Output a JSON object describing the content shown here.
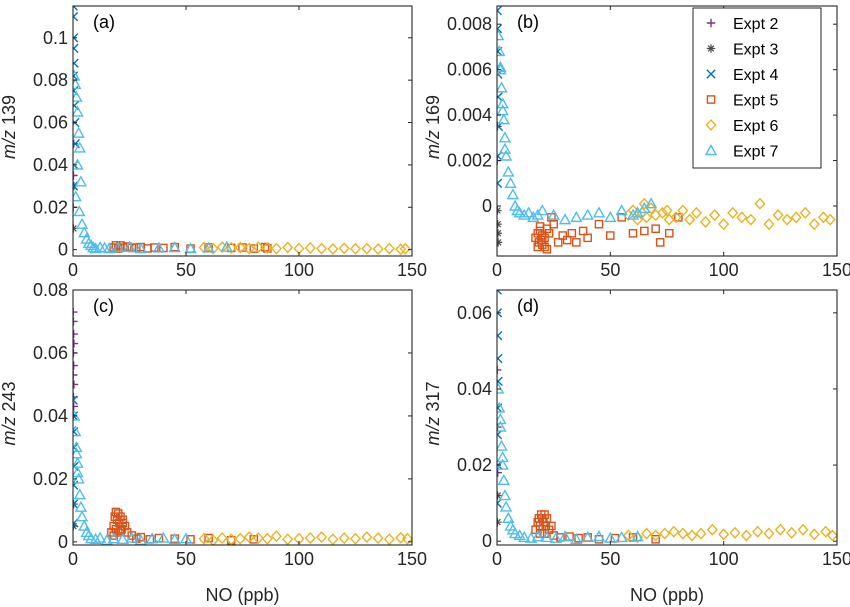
{
  "colors": {
    "expt2": "#7E2F8E",
    "expt3": "#4D4D4D",
    "expt4": "#0072BD",
    "expt5": "#D95319",
    "expt6": "#EDB120",
    "expt7": "#4DBEEE"
  },
  "series_styles": [
    {
      "name": "Expt 2",
      "marker": "plus",
      "color": "#7E2F8E"
    },
    {
      "name": "Expt 3",
      "marker": "asterisk",
      "color": "#4D4D4D"
    },
    {
      "name": "Expt 4",
      "marker": "cross",
      "color": "#0072BD"
    },
    {
      "name": "Expt 5",
      "marker": "square",
      "color": "#D95319"
    },
    {
      "name": "Expt 6",
      "marker": "diamond",
      "color": "#EDB120"
    },
    {
      "name": "Expt 7",
      "marker": "triangle",
      "color": "#4DBEEE"
    }
  ],
  "chart_data": [
    {
      "panel": "(a)",
      "type": "scatter",
      "xlabel": "",
      "ylabel": "m/z 139",
      "xlim": [
        0,
        150
      ],
      "ylim": [
        -0.003,
        0.115
      ],
      "xticks": [
        0,
        50,
        100,
        150
      ],
      "yticks": [
        0,
        0.02,
        0.04,
        0.06,
        0.08,
        0.1
      ],
      "yticklabels": [
        "0",
        "0.02",
        "0.04",
        "0.06",
        "0.08",
        "0.1"
      ],
      "legend": false,
      "series": [
        {
          "name": "Expt 2",
          "x": [
            0.1,
            0.2,
            0.3
          ],
          "y": [
            0.02,
            0.035,
            0.05
          ]
        },
        {
          "name": "Expt 3",
          "x": [
            0.2,
            0.4
          ],
          "y": [
            0.01,
            0.03
          ]
        },
        {
          "name": "Expt 4",
          "x": [
            0.1,
            0.2,
            0.3,
            0.4,
            0.5,
            0.2,
            0.3,
            0.6,
            0.8,
            1.0,
            0.4,
            0.2
          ],
          "y": [
            0.115,
            0.11,
            0.1,
            0.095,
            0.088,
            0.082,
            0.075,
            0.068,
            0.06,
            0.05,
            0.04,
            0.03
          ]
        },
        {
          "name": "Expt 5",
          "x": [
            18,
            19,
            20,
            21,
            22,
            24,
            26,
            28,
            30,
            33,
            36,
            40,
            45,
            52,
            60,
            70,
            75,
            80,
            85,
            86
          ],
          "y": [
            0.001,
            0.002,
            0.0005,
            0.002,
            0.001,
            0.0015,
            0.0008,
            0.001,
            0.0012,
            0.0006,
            0.001,
            0.0008,
            0.0012,
            0.0005,
            0.001,
            0.0008,
            0.001,
            0.0005,
            0.0012,
            0.0006
          ]
        },
        {
          "name": "Expt 6",
          "x": [
            58,
            62,
            66,
            70,
            74,
            78,
            82,
            86,
            90,
            95,
            100,
            105,
            110,
            115,
            120,
            125,
            130,
            135,
            140,
            145,
            147
          ],
          "y": [
            0.001,
            0.0005,
            0.0012,
            0.0008,
            0.001,
            0.0005,
            0.0012,
            0.0008,
            0.0005,
            0.001,
            0.0005,
            0.0008,
            0.0005,
            0.0003,
            0.0006,
            0.0004,
            0.0005,
            0.0003,
            0.0005,
            0.0002,
            0.0004
          ]
        },
        {
          "name": "Expt 7",
          "x": [
            0.5,
            1,
            1.5,
            2,
            2.5,
            3,
            2,
            3.5,
            1.2,
            2.8,
            4,
            5,
            6,
            7,
            8,
            9,
            10,
            12,
            14,
            16,
            20,
            25,
            30,
            38,
            45,
            52,
            60,
            68
          ],
          "y": [
            0.082,
            0.078,
            0.072,
            0.065,
            0.055,
            0.048,
            0.04,
            0.032,
            0.025,
            0.018,
            0.012,
            0.008,
            0.005,
            0.003,
            0.002,
            0.001,
            0.0005,
            0.001,
            0.0008,
            0.0005,
            0.001,
            0.0012,
            0.0005,
            0.0008,
            0.001,
            0.0005,
            0.0008,
            0.0012
          ]
        }
      ]
    },
    {
      "panel": "(b)",
      "type": "scatter",
      "xlabel": "",
      "ylabel": "m/z 169",
      "xlim": [
        0,
        150
      ],
      "ylim": [
        -0.0022,
        0.0088
      ],
      "xticks": [
        0,
        50,
        100,
        150
      ],
      "yticks": [
        0,
        0.002,
        0.004,
        0.006,
        0.008
      ],
      "yticklabels": [
        "0",
        "0.002",
        "0.004",
        "0.006",
        "0.008"
      ],
      "legend": true,
      "legend_position": "top-right",
      "series": [
        {
          "name": "Expt 2",
          "x": [
            0.1,
            0.2
          ],
          "y": [
            0.002,
            0.0035
          ]
        },
        {
          "name": "Expt 3",
          "x": [
            0.2,
            0.3,
            0.4,
            0.5
          ],
          "y": [
            -0.0002,
            -0.0008,
            -0.0012,
            -0.0016
          ]
        },
        {
          "name": "Expt 4",
          "x": [
            0.1,
            0.2,
            0.3,
            0.4,
            0.5,
            0.6,
            0.3,
            0.2
          ],
          "y": [
            0.0086,
            0.0078,
            0.0068,
            0.0058,
            0.0048,
            0.0035,
            0.0022,
            0.001
          ]
        },
        {
          "name": "Expt 5",
          "x": [
            17,
            18,
            18.5,
            19,
            19.5,
            20,
            21,
            22,
            23,
            24,
            25,
            27,
            29,
            31,
            33,
            35,
            38,
            40,
            45,
            50,
            55,
            60,
            65,
            70,
            72,
            76,
            80,
            18,
            20,
            22,
            19,
            21
          ],
          "y": [
            -0.0014,
            -0.0012,
            -0.0016,
            -0.0011,
            -0.0015,
            -0.0013,
            -0.0014,
            -0.001,
            -0.0012,
            -0.0005,
            -0.0008,
            -0.0016,
            -0.0013,
            -0.0015,
            -0.0012,
            -0.0016,
            -0.0011,
            -0.0014,
            -0.0008,
            -0.0013,
            -0.0005,
            -0.0012,
            -0.0011,
            -0.001,
            -0.0016,
            -0.0012,
            -0.0005,
            -0.0018,
            -0.0017,
            -0.0019,
            -0.0009,
            -0.0018
          ]
        },
        {
          "name": "Expt 6",
          "x": [
            58,
            60,
            62,
            64,
            66,
            68,
            70,
            73,
            76,
            79,
            82,
            85,
            88,
            92,
            96,
            100,
            104,
            108,
            112,
            116,
            120,
            124,
            128,
            132,
            136,
            140,
            144,
            147,
            65,
            75
          ],
          "y": [
            -0.0004,
            -0.0002,
            -0.0006,
            -0.0003,
            -0.0005,
            -0.0001,
            -0.0004,
            -0.0003,
            -0.0006,
            -0.0005,
            -0.0002,
            -0.0006,
            -0.0003,
            -0.0007,
            -0.0004,
            -0.0008,
            -0.0003,
            -0.0005,
            -0.0006,
            0.0001,
            -0.0008,
            -0.0004,
            -0.0006,
            -0.0005,
            -0.0003,
            -0.0008,
            -0.0005,
            -0.0006,
            0.0001,
            -0.0002
          ]
        },
        {
          "name": "Expt 7",
          "x": [
            0.5,
            1,
            1.5,
            2,
            2.5,
            3,
            3.5,
            4,
            5,
            6,
            7,
            8,
            9,
            10,
            12,
            14,
            16,
            18,
            20,
            25,
            30,
            35,
            40,
            45,
            50,
            55,
            60,
            65,
            68,
            62,
            1.5,
            2.5,
            3.5
          ],
          "y": [
            0.0075,
            0.0068,
            0.006,
            0.0052,
            0.0045,
            0.0038,
            0.003,
            0.0022,
            0.0015,
            0.001,
            0.0005,
            0.0,
            -0.0002,
            -0.0003,
            -0.0004,
            -0.0003,
            -0.0005,
            -0.0004,
            -0.0002,
            -0.0004,
            -0.0006,
            -0.0005,
            -0.0004,
            -0.0003,
            -0.0005,
            -0.0002,
            -0.0004,
            -0.0001,
            0.0001,
            -0.0003,
            0.0061,
            0.0042,
            0.0025
          ]
        }
      ]
    },
    {
      "panel": "(c)",
      "type": "scatter",
      "xlabel": "NO (ppb)",
      "ylabel": "m/z 243",
      "xlim": [
        0,
        150
      ],
      "ylim": [
        -0.001,
        0.08
      ],
      "xticks": [
        0,
        50,
        100,
        150
      ],
      "yticks": [
        0,
        0.02,
        0.04,
        0.06,
        0.08
      ],
      "yticklabels": [
        "0",
        "0.02",
        "0.04",
        "0.06",
        "0.08"
      ],
      "legend": false,
      "series": [
        {
          "name": "Expt 2",
          "x": [
            0.1,
            0.2,
            0.3,
            0.4,
            0.2,
            0.3,
            0.1,
            0.4,
            0.2,
            0.3,
            0.1
          ],
          "y": [
            0.073,
            0.07,
            0.066,
            0.063,
            0.06,
            0.056,
            0.053,
            0.05,
            0.046,
            0.043,
            0.04
          ]
        },
        {
          "name": "Expt 3",
          "x": [
            0.2,
            0.3
          ],
          "y": [
            0.005,
            0.012
          ]
        },
        {
          "name": "Expt 4",
          "x": [
            0.1,
            0.2,
            0.3,
            0.4,
            0.5,
            0.3,
            0.2,
            0.4
          ],
          "y": [
            0.045,
            0.04,
            0.035,
            0.03,
            0.024,
            0.018,
            0.012,
            0.006
          ]
        },
        {
          "name": "Expt 5",
          "x": [
            17,
            18,
            18.5,
            19,
            19.5,
            20,
            20.5,
            21,
            21.5,
            22,
            23,
            24,
            18,
            20,
            22,
            19,
            21,
            26,
            28,
            30,
            34,
            38,
            45,
            52,
            60,
            70,
            80
          ],
          "y": [
            0.003,
            0.005,
            0.008,
            0.004,
            0.007,
            0.009,
            0.006,
            0.008,
            0.004,
            0.006,
            0.005,
            0.003,
            0.002,
            0.003,
            0.007,
            0.0095,
            0.0035,
            0.002,
            0.001,
            0.0015,
            0.0008,
            0.0012,
            0.001,
            0.0008,
            0.0012,
            0.0005,
            0.0008
          ]
        },
        {
          "name": "Expt 6",
          "x": [
            58,
            62,
            66,
            70,
            74,
            78,
            82,
            86,
            90,
            95,
            100,
            105,
            110,
            115,
            120,
            125,
            130,
            135,
            140,
            145,
            148
          ],
          "y": [
            0.001,
            0.0005,
            0.0012,
            0.0008,
            0.001,
            0.0015,
            0.0012,
            0.001,
            0.0018,
            0.0008,
            0.001,
            0.0012,
            0.0015,
            0.0008,
            0.0012,
            0.001,
            0.0015,
            0.0012,
            0.0008,
            0.0013,
            0.001
          ]
        },
        {
          "name": "Expt 7",
          "x": [
            0.5,
            1,
            1.5,
            2,
            2.5,
            3,
            3.5,
            4,
            5,
            6,
            7,
            8,
            10,
            12,
            15,
            18,
            22,
            26,
            30,
            35,
            40,
            45,
            50,
            2,
            1.5
          ],
          "y": [
            0.04,
            0.035,
            0.03,
            0.025,
            0.02,
            0.015,
            0.011,
            0.008,
            0.005,
            0.003,
            0.002,
            0.001,
            0.0008,
            0.0012,
            0.0005,
            0.001,
            0.0008,
            0.0012,
            0.0005,
            0.001,
            0.0012,
            0.0008,
            0.001,
            0.022,
            0.028
          ]
        }
      ]
    },
    {
      "panel": "(d)",
      "type": "scatter",
      "xlabel": "NO (ppb)",
      "ylabel": "m/z 317",
      "xlim": [
        0,
        150
      ],
      "ylim": [
        -0.001,
        0.066
      ],
      "xticks": [
        0,
        50,
        100,
        150
      ],
      "yticks": [
        0,
        0.02,
        0.04,
        0.06
      ],
      "yticklabels": [
        "0",
        "0.02",
        "0.04",
        "0.06"
      ],
      "legend": false,
      "series": [
        {
          "name": "Expt 2",
          "x": [
            0.1,
            0.2,
            0.3
          ],
          "y": [
            0.045,
            0.03,
            0.018
          ]
        },
        {
          "name": "Expt 3",
          "x": [
            0.2,
            0.3
          ],
          "y": [
            0.005,
            0.012
          ]
        },
        {
          "name": "Expt 4",
          "x": [
            0.1,
            0.2,
            0.3,
            0.4,
            0.5,
            0.3,
            0.2,
            0.4,
            0.1
          ],
          "y": [
            0.066,
            0.06,
            0.054,
            0.048,
            0.042,
            0.035,
            0.028,
            0.02,
            0.01
          ]
        },
        {
          "name": "Expt 5",
          "x": [
            17,
            18,
            18.5,
            19,
            19.5,
            20,
            20.5,
            21,
            21.5,
            22,
            23,
            24,
            19,
            21,
            25,
            28,
            32,
            36,
            40,
            45,
            52,
            60,
            70
          ],
          "y": [
            0.003,
            0.005,
            0.006,
            0.004,
            0.007,
            0.006,
            0.005,
            0.007,
            0.004,
            0.006,
            0.003,
            0.004,
            0.002,
            0.002,
            0.0015,
            0.001,
            0.0012,
            0.0008,
            0.001,
            0.0005,
            0.0008,
            0.001,
            0.0005
          ]
        },
        {
          "name": "Expt 6",
          "x": [
            58,
            62,
            66,
            70,
            74,
            78,
            82,
            86,
            90,
            95,
            100,
            105,
            110,
            115,
            120,
            125,
            130,
            135,
            140,
            145,
            148
          ],
          "y": [
            0.0015,
            0.001,
            0.002,
            0.0015,
            0.002,
            0.0025,
            0.002,
            0.0015,
            0.002,
            0.003,
            0.0018,
            0.0022,
            0.0015,
            0.0025,
            0.002,
            0.003,
            0.0022,
            0.003,
            0.0018,
            0.0025,
            0.0015
          ]
        },
        {
          "name": "Expt 7",
          "x": [
            0.5,
            1,
            1.5,
            2,
            2.5,
            3,
            3.5,
            4,
            5,
            6,
            7,
            8,
            10,
            12,
            15,
            18,
            22,
            26,
            30,
            35,
            40,
            45,
            50,
            55,
            62,
            1.5,
            2.5
          ],
          "y": [
            0.04,
            0.035,
            0.03,
            0.025,
            0.02,
            0.016,
            0.012,
            0.009,
            0.006,
            0.004,
            0.003,
            0.002,
            0.0015,
            0.001,
            0.0008,
            0.0012,
            0.001,
            0.0008,
            0.0012,
            0.0005,
            0.001,
            0.0012,
            0.0008,
            0.001,
            0.0012,
            0.032,
            0.022
          ]
        }
      ]
    }
  ]
}
